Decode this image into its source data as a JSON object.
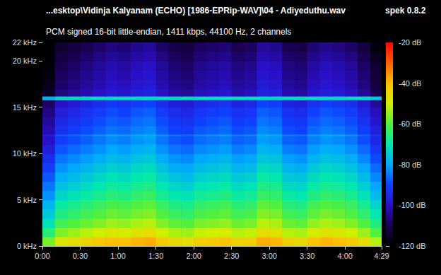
{
  "chart_data": {
    "type": "heatmap",
    "title": "...esktop\\Vidinja Kalyanam (ECHO) [1986-EPRip-WAV]\\04 - Adiyeduthu.wav",
    "subtitle": "PCM signed 16-bit little-endian, 1411 kbps, 44100 Hz, 2 channels",
    "annotations": [
      "spek 0.8.2"
    ],
    "grid": false,
    "xlim": [
      0,
      269
    ],
    "xticks": [
      {
        "value": 0,
        "label": "0:00"
      },
      {
        "value": 30,
        "label": "0:30"
      },
      {
        "value": 60,
        "label": "1:00"
      },
      {
        "value": 90,
        "label": "1:30"
      },
      {
        "value": 120,
        "label": "2:00"
      },
      {
        "value": 150,
        "label": "2:30"
      },
      {
        "value": 180,
        "label": "3:00"
      },
      {
        "value": 210,
        "label": "3:30"
      },
      {
        "value": 240,
        "label": "4:00"
      },
      {
        "value": 269,
        "label": "4:29"
      }
    ],
    "ylim": [
      0,
      22
    ],
    "yticks": [
      {
        "value": 0,
        "label": "0 kHz"
      },
      {
        "value": 5,
        "label": "5 kHz"
      },
      {
        "value": 10,
        "label": "10 kHz"
      },
      {
        "value": 15,
        "label": "15 kHz"
      },
      {
        "value": 20,
        "label": "20 kHz"
      },
      {
        "value": 22,
        "label": "22 kHz"
      }
    ],
    "colorbar": {
      "range": [
        -120,
        -20
      ],
      "ticks": [
        {
          "value": -20,
          "label": "-20 dB"
        },
        {
          "value": -40,
          "label": "-40 dB"
        },
        {
          "value": -60,
          "label": "-60 dB"
        },
        {
          "value": -80,
          "label": "-80 dB"
        },
        {
          "value": -100,
          "label": "-100 dB"
        },
        {
          "value": -120,
          "label": "-120 dB"
        }
      ]
    },
    "time_bins": [
      0,
      10,
      20,
      30,
      40,
      50,
      60,
      70,
      80,
      90,
      100,
      110,
      120,
      130,
      140,
      150,
      160,
      170,
      180,
      190,
      200,
      210,
      220,
      230,
      240,
      250,
      260,
      269
    ],
    "freq_bins": [
      0,
      1,
      2,
      3,
      4,
      5,
      6,
      7,
      8,
      9,
      10,
      11,
      11.9,
      12.1,
      13,
      14,
      15,
      15.8,
      16.2,
      17,
      18,
      19,
      20,
      21,
      22
    ],
    "cells": [
      [
        -57,
        -48,
        -46,
        -44,
        -42,
        -40,
        -41,
        -39,
        -38,
        -42,
        -45,
        -46,
        -43,
        -42,
        -41,
        -44,
        -43,
        -38,
        -39,
        -44,
        -45,
        -41,
        -39,
        -40,
        -42,
        -46,
        -52
      ],
      [
        -65,
        -56,
        -54,
        -52,
        -50,
        -48,
        -49,
        -47,
        -46,
        -50,
        -53,
        -54,
        -51,
        -50,
        -49,
        -52,
        -51,
        -46,
        -47,
        -52,
        -53,
        -49,
        -47,
        -48,
        -50,
        -54,
        -60
      ],
      [
        -71,
        -62,
        -60,
        -58,
        -56,
        -54,
        -55,
        -53,
        -52,
        -56,
        -59,
        -60,
        -57,
        -56,
        -55,
        -58,
        -57,
        -52,
        -53,
        -58,
        -59,
        -55,
        -53,
        -54,
        -56,
        -60,
        -66
      ],
      [
        -75,
        -66,
        -64,
        -62,
        -60,
        -58,
        -59,
        -57,
        -56,
        -60,
        -63,
        -64,
        -61,
        -60,
        -59,
        -62,
        -61,
        -56,
        -57,
        -62,
        -63,
        -59,
        -57,
        -58,
        -60,
        -64,
        -70
      ],
      [
        -78,
        -69,
        -67,
        -65,
        -63,
        -61,
        -62,
        -60,
        -59,
        -63,
        -66,
        -67,
        -64,
        -63,
        -62,
        -65,
        -64,
        -59,
        -60,
        -65,
        -66,
        -62,
        -60,
        -61,
        -63,
        -67,
        -73
      ],
      [
        -82,
        -73,
        -71,
        -69,
        -67,
        -65,
        -66,
        -64,
        -63,
        -67,
        -70,
        -71,
        -68,
        -67,
        -66,
        -69,
        -68,
        -63,
        -64,
        -69,
        -70,
        -66,
        -64,
        -65,
        -67,
        -71,
        -77
      ],
      [
        -85,
        -76,
        -74,
        -72,
        -70,
        -68,
        -69,
        -67,
        -66,
        -70,
        -73,
        -74,
        -71,
        -70,
        -69,
        -72,
        -71,
        -66,
        -67,
        -72,
        -73,
        -69,
        -67,
        -68,
        -70,
        -74,
        -80
      ],
      [
        -88,
        -79,
        -77,
        -75,
        -73,
        -71,
        -72,
        -70,
        -69,
        -73,
        -76,
        -77,
        -74,
        -73,
        -72,
        -75,
        -74,
        -69,
        -70,
        -75,
        -76,
        -72,
        -70,
        -71,
        -73,
        -77,
        -83
      ],
      [
        -91,
        -82,
        -80,
        -78,
        -76,
        -74,
        -75,
        -73,
        -72,
        -76,
        -79,
        -80,
        -77,
        -76,
        -75,
        -78,
        -77,
        -72,
        -73,
        -78,
        -79,
        -75,
        -73,
        -74,
        -76,
        -80,
        -86
      ],
      [
        -94,
        -85,
        -83,
        -81,
        -79,
        -77,
        -78,
        -76,
        -75,
        -79,
        -82,
        -83,
        -80,
        -79,
        -78,
        -81,
        -80,
        -75,
        -76,
        -81,
        -82,
        -78,
        -76,
        -77,
        -79,
        -83,
        -89
      ],
      [
        -97,
        -88,
        -86,
        -84,
        -82,
        -80,
        -81,
        -79,
        -78,
        -82,
        -85,
        -86,
        -83,
        -82,
        -81,
        -84,
        -83,
        -78,
        -79,
        -84,
        -85,
        -81,
        -79,
        -80,
        -82,
        -86,
        -92
      ],
      [
        -100,
        -91,
        -89,
        -87,
        -85,
        -83,
        -84,
        -82,
        -81,
        -85,
        -88,
        -89,
        -86,
        -85,
        -84,
        -87,
        -86,
        -81,
        -82,
        -87,
        -88,
        -84,
        -82,
        -83,
        -85,
        -89,
        -95
      ],
      [
        -97,
        -88,
        -86,
        -84,
        -82,
        -80,
        -81,
        -79,
        -78,
        -82,
        -85,
        -86,
        -83,
        -82,
        -81,
        -84,
        -83,
        -78,
        -79,
        -84,
        -85,
        -81,
        -79,
        -80,
        -82,
        -86,
        -92
      ],
      [
        -102,
        -93,
        -91,
        -89,
        -87,
        -85,
        -86,
        -84,
        -83,
        -87,
        -90,
        -91,
        -88,
        -87,
        -86,
        -89,
        -88,
        -83,
        -84,
        -89,
        -90,
        -86,
        -84,
        -85,
        -87,
        -91,
        -97
      ],
      [
        -104,
        -95,
        -93,
        -91,
        -89,
        -87,
        -88,
        -86,
        -85,
        -89,
        -92,
        -93,
        -90,
        -89,
        -88,
        -91,
        -90,
        -85,
        -86,
        -91,
        -92,
        -88,
        -86,
        -87,
        -89,
        -93,
        -99
      ],
      [
        -106,
        -97,
        -95,
        -93,
        -91,
        -89,
        -90,
        -88,
        -87,
        -91,
        -94,
        -95,
        -92,
        -91,
        -90,
        -93,
        -92,
        -87,
        -88,
        -93,
        -94,
        -90,
        -88,
        -89,
        -91,
        -95,
        -101
      ],
      [
        -109,
        -100,
        -98,
        -96,
        -94,
        -92,
        -93,
        -91,
        -90,
        -94,
        -97,
        -98,
        -95,
        -94,
        -93,
        -96,
        -95,
        -90,
        -91,
        -96,
        -97,
        -93,
        -91,
        -92,
        -94,
        -98,
        -104
      ],
      [
        -78,
        -72,
        -72,
        -72,
        -72,
        -72,
        -72,
        -72,
        -72,
        -72,
        -72,
        -72,
        -72,
        -72,
        -72,
        -72,
        -72,
        -72,
        -72,
        -72,
        -72,
        -72,
        -72,
        -72,
        -72,
        -72,
        -75
      ],
      [
        -115,
        -106,
        -104,
        -102,
        -100,
        -98,
        -99,
        -97,
        -96,
        -100,
        -103,
        -104,
        -101,
        -100,
        -99,
        -102,
        -101,
        -96,
        -97,
        -102,
        -103,
        -99,
        -97,
        -98,
        -100,
        -104,
        -110
      ],
      [
        -117,
        -108,
        -106,
        -104,
        -102,
        -100,
        -101,
        -99,
        -98,
        -102,
        -105,
        -106,
        -103,
        -102,
        -101,
        -104,
        -103,
        -98,
        -99,
        -104,
        -105,
        -101,
        -99,
        -100,
        -102,
        -106,
        -112
      ],
      [
        -118,
        -109,
        -107,
        -105,
        -103,
        -101,
        -102,
        -100,
        -99,
        -103,
        -106,
        -107,
        -104,
        -103,
        -102,
        -105,
        -104,
        -99,
        -100,
        -105,
        -106,
        -102,
        -100,
        -101,
        -103,
        -107,
        -113
      ],
      [
        -119,
        -110,
        -108,
        -106,
        -104,
        -102,
        -103,
        -101,
        -100,
        -104,
        -107,
        -108,
        -105,
        -104,
        -103,
        -106,
        -105,
        -100,
        -101,
        -106,
        -107,
        -103,
        -101,
        -102,
        -104,
        -108,
        -114
      ],
      [
        -120,
        -112,
        -110,
        -108,
        -106,
        -104,
        -105,
        -103,
        -102,
        -106,
        -109,
        -110,
        -107,
        -106,
        -105,
        -108,
        -107,
        -102,
        -103,
        -108,
        -109,
        -105,
        -103,
        -104,
        -106,
        -110,
        -116
      ],
      [
        -120,
        -114,
        -112,
        -110,
        -108,
        -106,
        -107,
        -105,
        -104,
        -108,
        -111,
        -112,
        -109,
        -108,
        -107,
        -110,
        -109,
        -104,
        -105,
        -110,
        -111,
        -107,
        -105,
        -106,
        -108,
        -112,
        -118
      ]
    ]
  }
}
